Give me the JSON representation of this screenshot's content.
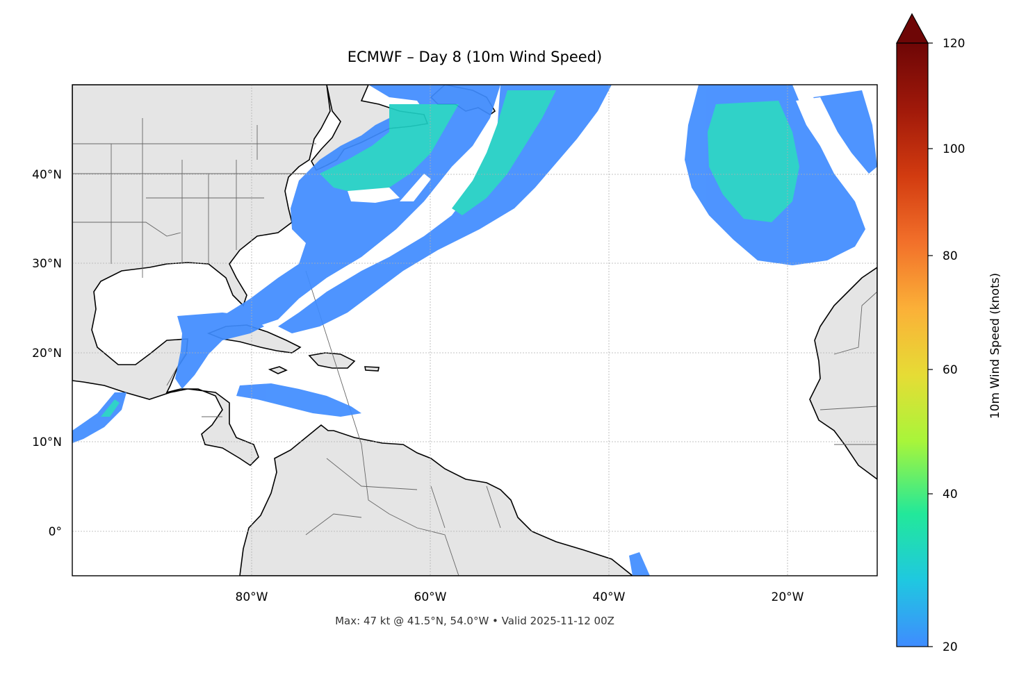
{
  "title": "ECMWF – Day 8 (10m Wind Speed)",
  "footer": "Max: 47 kt @ 41.5°N, 54.0°W • Valid 2025-11-12 00Z",
  "colorbar": {
    "label": "10m Wind Speed (knots)",
    "ticks": [
      "20",
      "40",
      "60",
      "80",
      "100",
      "120"
    ],
    "min": 20,
    "max": 120,
    "extend": "max",
    "colors": [
      "#3f8cff",
      "#1fc8e0",
      "#22e89a",
      "#a8f53a",
      "#e6dc35",
      "#fbb038",
      "#f2702a",
      "#d23b10",
      "#a0190a",
      "#6e0606"
    ]
  },
  "axes": {
    "lon_ticks": [
      "80°W",
      "60°W",
      "40°W",
      "20°W"
    ],
    "lat_ticks": [
      "40°N",
      "30°N",
      "20°N",
      "10°N",
      "0°"
    ],
    "lon_range": [
      -100,
      -10
    ],
    "lat_range": [
      -5,
      50
    ],
    "grid": true
  },
  "map": {
    "land_color": "#e5e5e5",
    "ocean_color": "#ffffff",
    "wind_low_color": "#3f8cff",
    "wind_mid_color": "#1fd6b4"
  },
  "max_wind": {
    "value": 47,
    "unit": "kt",
    "lat": 41.5,
    "lon": -54.0
  }
}
